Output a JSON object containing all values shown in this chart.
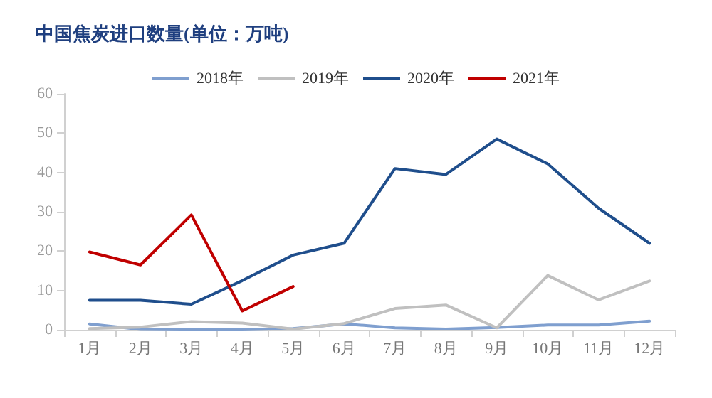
{
  "chart_data": {
    "type": "line",
    "title": "中国焦炭进口数量(单位：万吨)",
    "categories": [
      "1月",
      "2月",
      "3月",
      "4月",
      "5月",
      "6月",
      "7月",
      "8月",
      "9月",
      "10月",
      "11月",
      "12月"
    ],
    "series": [
      {
        "name": "2018年",
        "color": "#7f9fcf",
        "values": [
          1.5,
          0.1,
          0,
          0,
          0.3,
          1.5,
          0.5,
          0.2,
          0.6,
          1.2,
          1.2,
          2.2
        ]
      },
      {
        "name": "2019年",
        "color": "#c0c0c0",
        "values": [
          0.3,
          0.7,
          2.1,
          1.7,
          0.2,
          1.6,
          5.4,
          6.3,
          0.5,
          13.8,
          7.6,
          12.4
        ]
      },
      {
        "name": "2020年",
        "color": "#1f4e8c",
        "values": [
          7.5,
          7.5,
          6.5,
          12.5,
          19,
          22,
          41,
          39.5,
          48.5,
          42.2,
          30.9,
          22
        ]
      },
      {
        "name": "2021年",
        "color": "#c00000",
        "values": [
          19.8,
          16.5,
          29.2,
          4.8,
          11,
          null,
          null,
          null,
          null,
          null,
          null,
          null
        ]
      }
    ],
    "ylim": [
      0,
      60
    ],
    "yticks": [
      0,
      10,
      20,
      30,
      40,
      50,
      60
    ],
    "grid": false,
    "legend": "top",
    "marker": "none",
    "line_style": "solid"
  }
}
